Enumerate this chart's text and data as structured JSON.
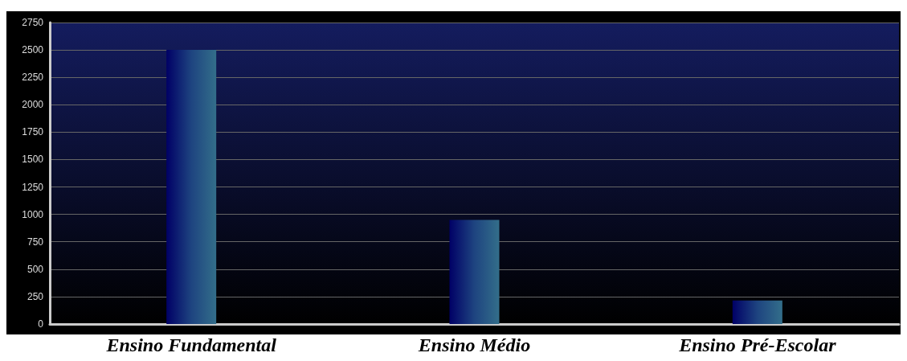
{
  "chart_data": {
    "type": "bar",
    "categories": [
      "Ensino Fundamental",
      "Ensino Médio",
      "Ensino Pré-Escolar"
    ],
    "values": [
      2500,
      950,
      215
    ],
    "color": "#1e4480",
    "ylim": [
      0,
      2750
    ],
    "yticks": [
      0,
      250,
      500,
      750,
      1000,
      1250,
      1500,
      1750,
      2000,
      2250,
      2500,
      2750
    ],
    "grid": "y"
  }
}
